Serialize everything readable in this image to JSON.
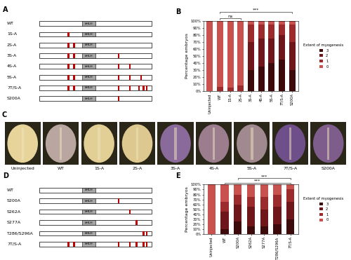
{
  "chart_data": [
    {
      "panel": "B",
      "type": "bar",
      "stacked": true,
      "categories": [
        "Uninjected",
        "WT",
        "1S-A",
        "2S-A",
        "3S-A",
        "4S-A",
        "5S-A",
        "7T/S-A",
        "S200A"
      ],
      "series": [
        {
          "name": "3",
          "color": "#3d0a0c",
          "values": [
            0,
            0,
            0,
            0,
            30,
            35,
            40,
            45,
            30
          ]
        },
        {
          "name": "2",
          "color": "#6e1619",
          "values": [
            0,
            0,
            0,
            0,
            40,
            40,
            35,
            35,
            40
          ]
        },
        {
          "name": "1",
          "color": "#9c2b2e",
          "values": [
            0,
            6,
            5,
            8,
            25,
            20,
            20,
            15,
            25
          ]
        },
        {
          "name": "0",
          "color": "#c9514e",
          "values": [
            100,
            94,
            95,
            92,
            5,
            5,
            5,
            5,
            5
          ]
        }
      ],
      "ylabel": "Percentage embryos",
      "ylim": [
        0,
        100
      ],
      "yticks": [
        {
          "value": 0,
          "label": "0%"
        },
        {
          "value": 10,
          "label": "10%"
        },
        {
          "value": 20,
          "label": "20%"
        },
        {
          "value": 30,
          "label": "30%"
        },
        {
          "value": 40,
          "label": "40%"
        },
        {
          "value": 50,
          "label": "50%"
        },
        {
          "value": 60,
          "label": "60%"
        },
        {
          "value": 70,
          "label": "70%"
        },
        {
          "value": 80,
          "label": "80%"
        },
        {
          "value": 90,
          "label": "90%"
        },
        {
          "value": 100,
          "label": "100%"
        }
      ],
      "legend": "center left",
      "legend_title": "Extent of myogenesis",
      "annotations": [
        {
          "from": "WT",
          "to": "2S-A",
          "text": "ns"
        },
        {
          "from": "WT",
          "to": "S200A",
          "text": "***"
        }
      ]
    },
    {
      "panel": "E",
      "type": "bar",
      "stacked": true,
      "categories": [
        "Uninjected",
        "WT",
        "S200A",
        "S262A",
        "S277A",
        "T286/S296A",
        "7T/S-A"
      ],
      "series": [
        {
          "name": "3",
          "color": "#3d0a0c",
          "values": [
            0,
            10,
            25,
            15,
            15,
            20,
            30
          ]
        },
        {
          "name": "2",
          "color": "#6e1619",
          "values": [
            0,
            35,
            35,
            40,
            35,
            35,
            35
          ]
        },
        {
          "name": "1",
          "color": "#9c2b2e",
          "values": [
            0,
            20,
            20,
            20,
            25,
            25,
            25
          ]
        },
        {
          "name": "0",
          "color": "#c9514e",
          "values": [
            100,
            35,
            20,
            25,
            25,
            20,
            10
          ]
        }
      ],
      "ylabel": "Percentage embryos",
      "ylim": [
        0,
        100
      ],
      "yticks": [
        {
          "value": 0,
          "label": "0%"
        },
        {
          "value": 10,
          "label": "10%"
        },
        {
          "value": 20,
          "label": "20%"
        },
        {
          "value": 30,
          "label": "30%"
        },
        {
          "value": 40,
          "label": "40%"
        },
        {
          "value": 50,
          "label": "50%"
        },
        {
          "value": 60,
          "label": "60%"
        },
        {
          "value": 70,
          "label": "70%"
        },
        {
          "value": 80,
          "label": "80%"
        },
        {
          "value": 90,
          "label": "90%"
        },
        {
          "value": 100,
          "label": "100%"
        }
      ],
      "legend": "center left",
      "legend_title": "Extent of myogenesis",
      "annotations": [
        {
          "from": "WT",
          "to": "7T/S-A",
          "text": "***"
        },
        {
          "from": "S200A",
          "to": "7T/S-A",
          "text": "***"
        }
      ]
    }
  ],
  "diagrams": [
    {
      "panel": "A",
      "domain": "bHLH",
      "constructs": [
        "WT",
        "1S-A",
        "2S-A",
        "3S-A",
        "4S-A",
        "5S-A",
        "7T/S-A",
        "S200A"
      ]
    },
    {
      "panel": "D",
      "domain": "bHLH",
      "constructs": [
        "WT",
        "S200A",
        "S262A",
        "S277A",
        "T286/S296A",
        "7T/S-A"
      ]
    }
  ],
  "images": {
    "panel": "C",
    "labels": [
      "Uninjected",
      "WT",
      "1S-A",
      "2S-A",
      "3S-A",
      "4S-A",
      "5S-A",
      "7T/S-A",
      "S200A"
    ]
  }
}
